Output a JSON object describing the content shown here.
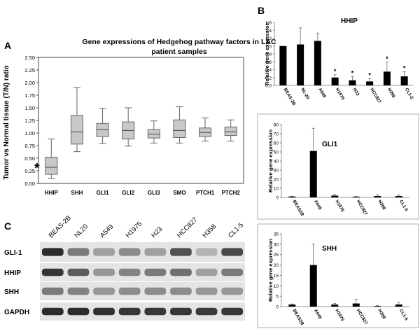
{
  "panel_a": {
    "letter": "A",
    "title_line1": "Gene expressions of Hedgehog pathway factors in LAC",
    "title_line2": "patient samples",
    "ylabel": "Tumor vs Normal tissue (T/N) ratio",
    "asterisk": "*"
  },
  "panel_b": {
    "letter": "B"
  },
  "panel_c": {
    "letter": "C",
    "lanes": [
      "BEAS-2B",
      "NL20",
      "A549",
      "H1975",
      "H23",
      "HCC827",
      "H358",
      "CL1-5"
    ],
    "rows": [
      "GLI-1",
      "HHIP",
      "SHH",
      "GAPDH"
    ]
  },
  "colors": {
    "box_fill": "#c8c8c8",
    "bar_fill": "#000000",
    "blot_bg": "#e4e4e4",
    "band": "#222222"
  },
  "chart_data": [
    {
      "type": "box",
      "id": "hh_boxplot",
      "title": "Gene expressions of Hedgehog pathway factors in LAC patient samples",
      "ylabel": "Tumor vs Normal tissue (T/N) ratio",
      "ylim": [
        0,
        2.5
      ],
      "yticks": [
        0,
        0.25,
        0.5,
        0.75,
        1,
        1.25,
        1.5,
        1.75,
        2,
        2.25,
        2.5
      ],
      "categories": [
        "HHIP",
        "SHH",
        "GLI1",
        "GLI2",
        "GLI3",
        "SMO",
        "PTCH1",
        "PTCH2"
      ],
      "boxes": [
        {
          "min": 0.1,
          "q1": 0.18,
          "median": 0.32,
          "q3": 0.52,
          "max": 0.88
        },
        {
          "min": 0.63,
          "q1": 0.78,
          "median": 1.02,
          "q3": 1.35,
          "max": 1.9
        },
        {
          "min": 0.79,
          "q1": 0.93,
          "median": 1.07,
          "q3": 1.19,
          "max": 1.49
        },
        {
          "min": 0.74,
          "q1": 0.88,
          "median": 1.05,
          "q3": 1.22,
          "max": 1.5
        },
        {
          "min": 0.8,
          "q1": 0.9,
          "median": 0.98,
          "q3": 1.07,
          "max": 1.24
        },
        {
          "min": 0.8,
          "q1": 0.91,
          "median": 1.05,
          "q3": 1.26,
          "max": 1.52
        },
        {
          "min": 0.84,
          "q1": 0.93,
          "median": 1.01,
          "q3": 1.1,
          "max": 1.3
        },
        {
          "min": 0.84,
          "q1": 0.95,
          "median": 1.02,
          "q3": 1.12,
          "max": 1.26
        }
      ],
      "grid": false
    },
    {
      "type": "bar",
      "id": "hhip_bars",
      "title": "HHIP",
      "ylabel": "Relative gene expression",
      "ylim": [
        0,
        1.6
      ],
      "yticks": [
        0,
        0.2,
        0.4,
        0.6,
        0.8,
        1,
        1.2,
        1.4,
        1.6
      ],
      "tick_labels": [
        "0.0",
        "0.2",
        "0.4",
        "0.6",
        "0.8",
        "1.0",
        "1.2",
        "1.4",
        "1.6"
      ],
      "categories": [
        "BEAS-2B",
        "NL-20",
        "A549",
        "H1975",
        "H23",
        "HCC827",
        "H358",
        "CL1-5"
      ],
      "values": [
        1.0,
        1.04,
        1.13,
        0.2,
        0.13,
        0.1,
        0.35,
        0.23
      ],
      "errors": [
        0,
        0.42,
        0.2,
        0.07,
        0.09,
        0.07,
        0.24,
        0.12
      ],
      "significant": [
        false,
        false,
        false,
        true,
        true,
        true,
        true,
        true
      ],
      "sig_marker": "*"
    },
    {
      "type": "bar",
      "id": "gli1_bars",
      "title": "GLI1",
      "ylabel": "Relative gene expression",
      "ylim": [
        0,
        80
      ],
      "yticks": [
        0,
        10,
        20,
        30,
        40,
        50,
        60,
        70,
        80
      ],
      "tick_labels": [
        "0",
        "10",
        "20",
        "30",
        "40",
        "50",
        "60",
        "70",
        "80"
      ],
      "categories": [
        "BEAS2B",
        "A549",
        "H1975",
        "HCC827",
        "H358",
        "CL1-5"
      ],
      "values": [
        1,
        51,
        2,
        0.8,
        1.5,
        1.5
      ],
      "errors": [
        0.3,
        25,
        1.5,
        0.5,
        1.5,
        1.5
      ]
    },
    {
      "type": "bar",
      "id": "shh_bars",
      "title": "SHH",
      "ylabel": "Relative gene expression",
      "ylim": [
        0,
        35
      ],
      "yticks": [
        0,
        5,
        10,
        15,
        20,
        25,
        30,
        35
      ],
      "tick_labels": [
        "0",
        "5",
        "10",
        "15",
        "20",
        "25",
        "30",
        "35"
      ],
      "categories": [
        "BEAS2B",
        "A549",
        "H1975",
        "HCC827",
        "H358",
        "CL1-5"
      ],
      "values": [
        1,
        20,
        1,
        1.5,
        0.3,
        1
      ],
      "errors": [
        0.3,
        10,
        0.5,
        2,
        0.2,
        0.8
      ]
    }
  ]
}
